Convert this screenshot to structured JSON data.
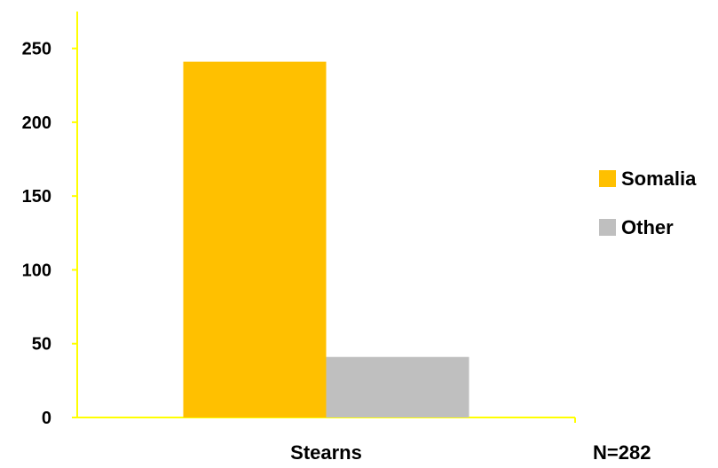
{
  "chart_data": {
    "type": "bar",
    "categories": [
      "Stearns"
    ],
    "series": [
      {
        "name": "Somalia",
        "values": [
          241
        ],
        "color": "#FFC000"
      },
      {
        "name": "Other",
        "values": [
          41
        ],
        "color": "#BFBFBF"
      }
    ],
    "ylim": [
      0,
      250
    ],
    "yticks": [
      0,
      50,
      100,
      150,
      200,
      250
    ],
    "axis_color": "#FFFF00",
    "grid": false,
    "legend_position": "right",
    "annotation": "N=282"
  }
}
